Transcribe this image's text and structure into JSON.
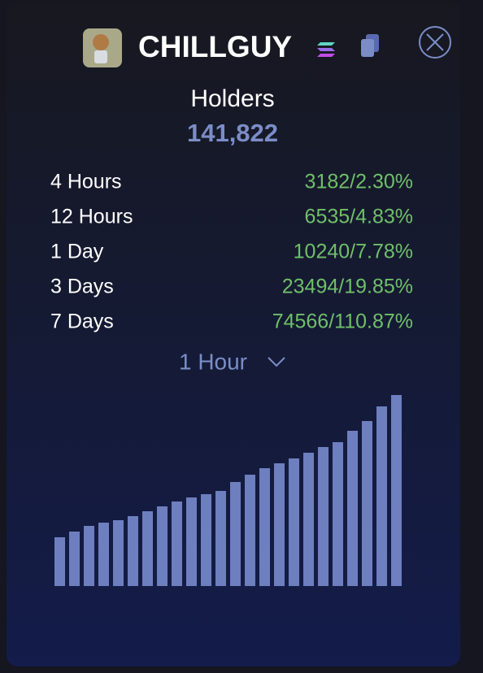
{
  "header": {
    "title": "CHILLGUY"
  },
  "holders": {
    "label": "Holders",
    "count": "141,822"
  },
  "stats": [
    {
      "period": "4 Hours",
      "change": "3182/2.30%"
    },
    {
      "period": "12 Hours",
      "change": "6535/4.83%"
    },
    {
      "period": "1 Day",
      "change": "10240/7.78%"
    },
    {
      "period": "3 Days",
      "change": "23494/19.85%"
    },
    {
      "period": "7 Days",
      "change": "74566/110.87%"
    }
  ],
  "interval": "1 Hour",
  "chart_data": {
    "type": "bar",
    "color": "#6e7fbf",
    "values": [
      60,
      67,
      74,
      78,
      81,
      86,
      92,
      98,
      104,
      109,
      113,
      117,
      128,
      137,
      145,
      151,
      157,
      164,
      171,
      177,
      191,
      203,
      221,
      235
    ],
    "ylim": [
      0,
      240
    ]
  }
}
